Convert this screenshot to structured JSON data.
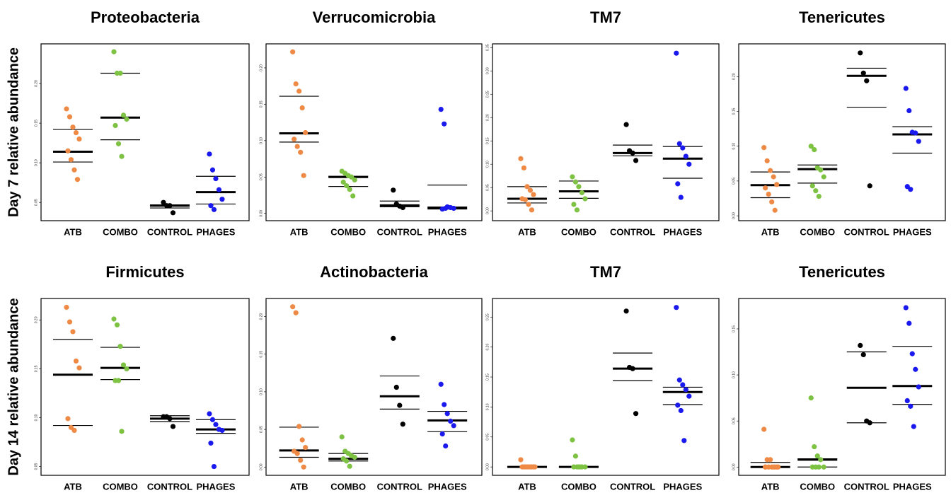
{
  "row_labels": [
    "Day 7 relative abundance",
    "Day 14 relative abundance"
  ],
  "chart_data": [
    {
      "type": "strip",
      "title": "Proteobacteria",
      "categories": [
        "ATB",
        "COMBO",
        "CONTROL",
        "PHAGES"
      ],
      "colors": [
        "#ee8a45",
        "#7dc242",
        "#000000",
        "#1a1aee"
      ],
      "values": [
        [
          0.168,
          0.158,
          0.145,
          0.138,
          0.13,
          0.115,
          0.104,
          0.091,
          0.079
        ],
        [
          0.24,
          0.213,
          0.213,
          0.16,
          0.155,
          0.147,
          0.124,
          0.108
        ],
        [
          0.05,
          0.046,
          0.046,
          0.037
        ],
        [
          0.111,
          0.091,
          0.08,
          0.066,
          0.054,
          0.046,
          0.041
        ]
      ],
      "medians": [
        0.114,
        0.157,
        0.046,
        0.063
      ],
      "q1": [
        0.101,
        0.129,
        0.043,
        0.048
      ],
      "q3": [
        0.142,
        0.213,
        0.047,
        0.083
      ],
      "ylim": [
        0.027,
        0.25
      ],
      "yticks": [
        0.05,
        {
          "value": 0.1,
          "label": "0.10"
        },
        0.15,
        {
          "value": 0.2,
          "label": "0.20"
        }
      ]
    },
    {
      "type": "strip",
      "title": "Verrucomicrobia",
      "categories": [
        "ATB",
        "COMBO",
        "CONTROL",
        "PHAGES"
      ],
      "colors": [
        "#ee8a45",
        "#7dc242",
        "#000000",
        "#1a1aee"
      ],
      "values": [
        [
          0.222,
          0.178,
          0.168,
          0.145,
          0.111,
          0.102,
          0.092,
          0.084,
          0.052
        ],
        [
          0.058,
          0.055,
          0.052,
          0.05,
          0.046,
          0.043,
          0.038,
          0.033,
          0.024
        ],
        [
          0.032,
          0.013,
          0.01,
          0.008
        ],
        [
          0.143,
          0.123,
          0.009,
          0.008,
          0.007,
          0.006,
          0.007
        ]
      ],
      "medians": [
        0.11,
        0.05,
        0.011,
        0.008
      ],
      "q1": [
        0.098,
        0.037,
        0.009,
        0.006
      ],
      "q3": [
        0.161,
        0.051,
        0.017,
        0.039
      ],
      "ylim": [
        -0.01,
        0.233
      ],
      "yticks": [
        {
          "value": 0,
          "label": "0.00"
        },
        0.05,
        {
          "value": 0.1,
          "label": "0.10"
        },
        0.15,
        {
          "value": 0.2,
          "label": "0.20"
        }
      ]
    },
    {
      "type": "strip",
      "title": "TM7",
      "categories": [
        "ATB",
        "COMBO",
        "CONTROL",
        "PHAGES"
      ],
      "colors": [
        "#ee8a45",
        "#7dc242",
        "#000000",
        "#1a1aee"
      ],
      "values": [
        [
          0.112,
          0.092,
          0.052,
          0.044,
          0.035,
          0.026,
          0.024,
          0.014,
          0.002
        ],
        [
          0.073,
          0.062,
          0.052,
          0.039,
          0.026,
          0.014,
          0.002
        ],
        [
          0.185,
          0.129,
          0.124,
          0.108
        ],
        [
          0.338,
          0.144,
          0.135,
          0.117,
          0.1,
          0.058,
          0.029
        ]
      ],
      "medians": [
        0.026,
        0.042,
        0.124,
        0.112
      ],
      "q1": [
        0.017,
        0.027,
        0.118,
        0.07
      ],
      "q3": [
        0.052,
        0.064,
        0.141,
        0.138
      ],
      "ylim": [
        -0.021,
        0.358
      ],
      "yticks": [
        {
          "value": 0,
          "label": "0.00"
        },
        0.05,
        {
          "value": 0.1,
          "label": "0.10"
        },
        0.15,
        {
          "value": 0.2,
          "label": "0.20"
        },
        0.25,
        {
          "value": 0.3,
          "label": "0.30"
        },
        0.35
      ]
    },
    {
      "type": "strip",
      "title": "Tenericutes",
      "categories": [
        "ATB",
        "COMBO",
        "CONTROL",
        "PHAGES"
      ],
      "colors": [
        "#ee8a45",
        "#7dc242",
        "#000000",
        "#1a1aee"
      ],
      "values": [
        [
          0.098,
          0.079,
          0.065,
          0.056,
          0.045,
          0.04,
          0.031,
          0.02,
          0.008
        ],
        [
          0.1,
          0.095,
          0.069,
          0.066,
          0.056,
          0.043,
          0.036,
          0.028
        ],
        [
          0.234,
          0.205,
          0.194,
          0.043
        ],
        [
          0.183,
          0.151,
          0.12,
          0.119,
          0.107,
          0.042,
          0.038
        ]
      ],
      "medians": [
        0.044,
        0.067,
        0.201,
        0.117
      ],
      "q1": [
        0.026,
        0.047,
        0.156,
        0.09
      ],
      "q3": [
        0.063,
        0.073,
        0.212,
        0.128
      ],
      "ylim": [
        -0.007,
        0.247
      ],
      "yticks": [
        {
          "value": 0,
          "label": "0.00"
        },
        0.05,
        {
          "value": 0.1,
          "label": "0.10"
        },
        0.15,
        {
          "value": 0.2,
          "label": "0.20"
        }
      ]
    },
    {
      "type": "strip",
      "title": "Firmicutes",
      "categories": [
        "ATB",
        "COMBO",
        "CONTROL",
        "PHAGES"
      ],
      "colors": [
        "#ee8a45",
        "#7dc242",
        "#000000",
        "#1a1aee"
      ],
      "values": [
        [
          0.213,
          0.198,
          0.188,
          0.158,
          0.151,
          0.099,
          0.09,
          0.087
        ],
        [
          0.201,
          0.195,
          0.173,
          0.154,
          0.15,
          0.138,
          0.138,
          0.086
        ],
        [
          0.101,
          0.101,
          0.099,
          0.091
        ],
        [
          0.104,
          0.098,
          0.093,
          0.088,
          0.087,
          0.074,
          0.05
        ]
      ],
      "medians": [
        0.144,
        0.151,
        0.099,
        0.088
      ],
      "q1": [
        0.092,
        0.139,
        0.096,
        0.084
      ],
      "q3": [
        0.18,
        0.172,
        0.102,
        0.098
      ],
      "ylim": [
        0.041,
        0.222
      ],
      "yticks": [
        0.05,
        {
          "value": 0.1,
          "label": "0.10"
        },
        0.15,
        {
          "value": 0.2,
          "label": "0.20"
        }
      ]
    },
    {
      "type": "strip",
      "title": "Actinobacteria",
      "categories": [
        "ATB",
        "COMBO",
        "CONTROL",
        "PHAGES"
      ],
      "colors": [
        "#ee8a45",
        "#7dc242",
        "#000000",
        "#1a1aee"
      ],
      "values": [
        [
          0.213,
          0.205,
          0.054,
          0.036,
          0.026,
          0.021,
          0.018,
          0.009,
          0
        ],
        [
          0.04,
          0.021,
          0.018,
          0.015,
          0.013,
          0.011,
          0.008,
          0.001
        ],
        [
          0.171,
          0.106,
          0.082,
          0.057
        ],
        [
          0.11,
          0.083,
          0.071,
          0.061,
          0.055,
          0.044,
          0.028
        ]
      ],
      "medians": [
        0.022,
        0.011,
        0.094,
        0.062
      ],
      "q1": [
        0.013,
        0.008,
        0.077,
        0.047
      ],
      "q3": [
        0.053,
        0.018,
        0.121,
        0.074
      ],
      "ylim": [
        -0.011,
        0.224
      ],
      "yticks": [
        {
          "value": 0,
          "label": "0.00"
        },
        0.05,
        {
          "value": 0.1,
          "label": "0.10"
        },
        0.15,
        {
          "value": 0.2,
          "label": "0.20"
        }
      ]
    },
    {
      "type": "strip",
      "title": "TM7",
      "categories": [
        "ATB",
        "COMBO",
        "CONTROL",
        "PHAGES"
      ],
      "colors": [
        "#ee8a45",
        "#7dc242",
        "#000000",
        "#1a1aee"
      ],
      "values": [
        [
          0.012,
          0,
          0,
          0,
          0,
          0,
          0,
          0,
          0,
          0
        ],
        [
          0.045,
          0.018,
          0,
          0,
          0,
          0,
          0,
          0
        ],
        [
          0.26,
          0.166,
          0.164,
          0.089
        ],
        [
          0.266,
          0.145,
          0.137,
          0.129,
          0.118,
          0.103,
          0.094,
          0.044
        ]
      ],
      "medians": [
        0,
        0,
        0.164,
        0.125
      ],
      "q1": [
        0,
        0,
        0.144,
        0.104
      ],
      "q3": [
        0,
        0,
        0.19,
        0.133
      ],
      "ylim": [
        -0.014,
        0.281
      ],
      "yticks": [
        {
          "value": 0,
          "label": "0.00"
        },
        0.05,
        {
          "value": 0.1,
          "label": "0.10"
        },
        0.15,
        {
          "value": 0.2,
          "label": "0.20"
        },
        0.25
      ]
    },
    {
      "type": "strip",
      "title": "Tenericutes",
      "categories": [
        "ATB",
        "COMBO",
        "CONTROL",
        "PHAGES"
      ],
      "colors": [
        "#ee8a45",
        "#7dc242",
        "#000000",
        "#1a1aee"
      ],
      "values": [
        [
          0.041,
          0.008,
          0.008,
          0,
          0,
          0,
          0,
          0,
          0,
          0,
          0
        ],
        [
          0.075,
          0.022,
          0.012,
          0.008,
          0,
          0,
          0,
          0
        ],
        [
          0.132,
          0.122,
          0.05,
          0.048
        ],
        [
          0.173,
          0.156,
          0.123,
          0.106,
          0.087,
          0.072,
          0.066,
          0.044
        ]
      ],
      "medians": [
        0,
        0.008,
        0.086,
        0.088
      ],
      "q1": [
        0,
        0,
        0.048,
        0.068
      ],
      "q3": [
        0.005,
        0.009,
        0.125,
        0.131
      ],
      "ylim": [
        -0.009,
        0.183
      ],
      "yticks": [
        {
          "value": 0,
          "label": "0.00"
        },
        0.05,
        {
          "value": 0.1,
          "label": "0.10"
        },
        0.15
      ]
    }
  ]
}
